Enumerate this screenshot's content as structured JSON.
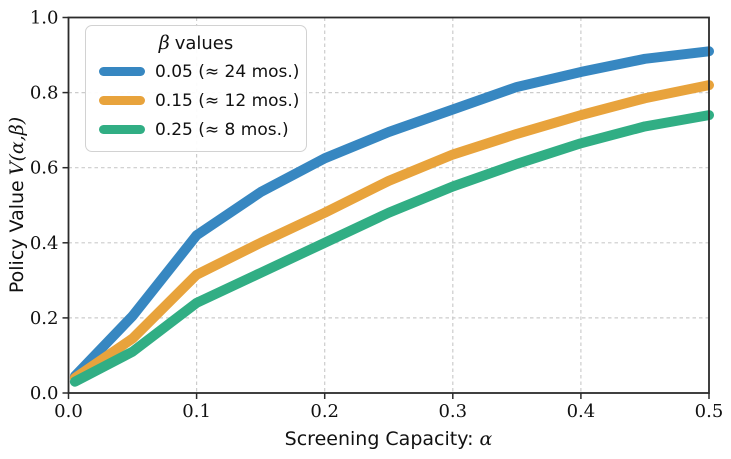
{
  "labels": {
    "xlabel_text": "Screening Capacity:",
    "xlabel_math": "α",
    "ylabel_text": "Policy Value",
    "ylabel_math": "V(α,β)"
  },
  "legend": {
    "title_symbol": "β",
    "title_rest": "values",
    "items": [
      {
        "label": "0.05 (≈ 24 mos.)"
      },
      {
        "label": "0.15 (≈ 12 mos.)"
      },
      {
        "label": "0.25 (≈ 8 mos.)"
      }
    ]
  },
  "chart_data": {
    "type": "line",
    "title": "",
    "xlabel": "Screening Capacity: α",
    "ylabel": "Policy Value V(α,β)",
    "xlim": [
      0.0,
      0.5
    ],
    "ylim": [
      0.0,
      1.0
    ],
    "xticks": [
      0.0,
      0.1,
      0.2,
      0.3,
      0.4,
      0.5
    ],
    "yticks": [
      0.0,
      0.2,
      0.4,
      0.6,
      0.8,
      1.0
    ],
    "xtick_labels": [
      "0.0",
      "0.1",
      "0.2",
      "0.3",
      "0.4",
      "0.5"
    ],
    "ytick_labels": [
      "0.0",
      "0.2",
      "0.4",
      "0.6",
      "0.8",
      "1.0"
    ],
    "grid": true,
    "legend_title": "β values",
    "legend_position": "upper left",
    "x": [
      0.005,
      0.05,
      0.1,
      0.15,
      0.2,
      0.25,
      0.3,
      0.35,
      0.4,
      0.45,
      0.5
    ],
    "series": [
      {
        "name": "0.05 (≈ 24 mos.)",
        "key": "beta-0.05",
        "color": "#3787c1",
        "values": [
          0.045,
          0.205,
          0.42,
          0.535,
          0.625,
          0.695,
          0.755,
          0.815,
          0.855,
          0.89,
          0.91
        ]
      },
      {
        "name": "0.15 (≈ 12 mos.)",
        "key": "beta-0.15",
        "color": "#e8a33c",
        "values": [
          0.04,
          0.145,
          0.315,
          0.4,
          0.48,
          0.565,
          0.635,
          0.69,
          0.74,
          0.785,
          0.82
        ]
      },
      {
        "name": "0.25 (≈ 8 mos.)",
        "key": "beta-0.25",
        "color": "#31ae84",
        "values": [
          0.03,
          0.11,
          0.24,
          0.32,
          0.4,
          0.48,
          0.55,
          0.61,
          0.665,
          0.71,
          0.74
        ]
      }
    ]
  },
  "style": {
    "grid_color": "#cccccc",
    "spine_color": "#2b2b2b",
    "text_color": "#111111",
    "background": "#ffffff"
  }
}
